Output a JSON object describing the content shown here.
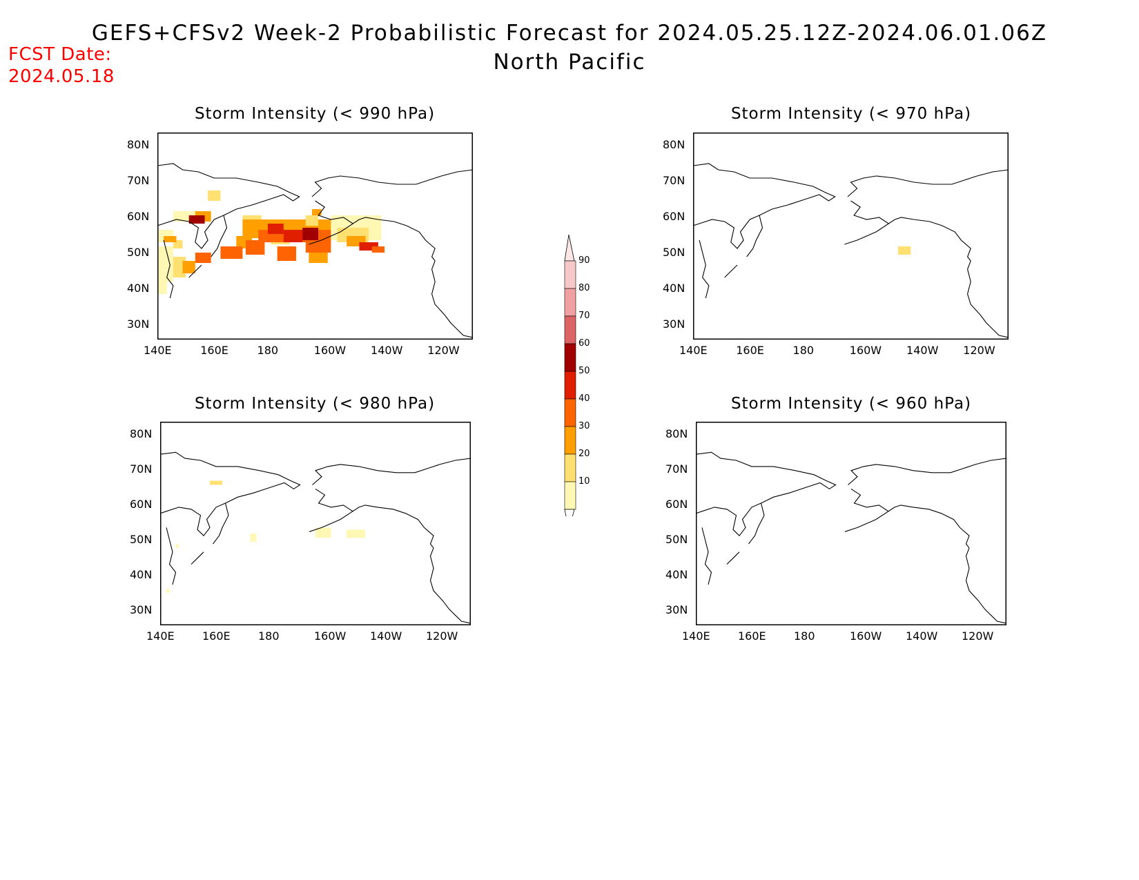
{
  "header": {
    "title_line1": "GEFS+CFSv2 Week-2 Probabilistic Forecast for 2024.05.25.12Z-2024.06.01.06Z",
    "title_line2": "North Pacific",
    "fcst_label": "FCST Date:",
    "fcst_date": "2024.05.18"
  },
  "axes": {
    "lat_ticks": [
      "80N",
      "70N",
      "60N",
      "50N",
      "40N",
      "30N"
    ],
    "lon_ticks": [
      "140E",
      "160E",
      "180",
      "160W",
      "140W",
      "120W"
    ]
  },
  "panels": [
    {
      "title": "Storm Intensity (< 990 hPa)"
    },
    {
      "title": "Storm Intensity (< 970 hPa)"
    },
    {
      "title": "Storm Intensity (< 980 hPa)"
    },
    {
      "title": "Storm Intensity (< 960 hPa)"
    }
  ],
  "colorbar": {
    "labels": [
      "90",
      "80",
      "70",
      "60",
      "50",
      "40",
      "30",
      "20",
      "10"
    ],
    "colors": [
      "#f6c8c8",
      "#f0a0a0",
      "#dc6464",
      "#a00000",
      "#e01e00",
      "#ff6400",
      "#ffa000",
      "#ffe070",
      "#fff8b4"
    ]
  },
  "colors": {
    "fcst_text": "#ff0000",
    "coast": "#000000"
  }
}
